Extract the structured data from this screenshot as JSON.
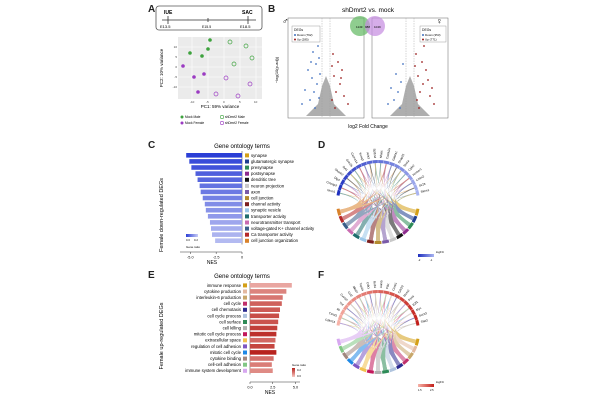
{
  "figure": {
    "panels": {
      "A": "A",
      "B": "B",
      "C": "C",
      "D": "D",
      "E": "E",
      "F": "F"
    },
    "timeline": {
      "iue": "IUE",
      "sac": "SAC",
      "e135": "E13.5",
      "e155": "E15.5",
      "e185": "E18.5"
    },
    "pca": {
      "xlabel": "PC1: 59% variance",
      "ylabel": "PC2: 10% variance",
      "xticks": [
        "-10",
        "-5",
        "0",
        "5",
        "10"
      ],
      "yticks": [
        "15",
        "10",
        "5",
        "0",
        "-5",
        "-10",
        "-15"
      ],
      "legend": [
        "Mock Male",
        "Mock Female",
        "shDmrt2 Male",
        "shDmrt2 Female"
      ]
    },
    "volcano": {
      "title": "shDmrt2 vs. mock",
      "ylabel": "−log(10(p-adj))",
      "xlabel": "log2 Fold Change",
      "male_symbol": "♂",
      "female_symbol": "♀",
      "legend_title": "DEGs",
      "male_down": "Down (792)",
      "male_up": "Up (285)",
      "female_down": "Down (353)",
      "female_up": "Up (771)",
      "venn_left": "1149",
      "venn_mid": "988",
      "venn_right": "1049"
    },
    "go_down": {
      "title": "Gene ontology terms",
      "side_label": "Female down-regulated DEGs",
      "xlabel": "NES",
      "xticks": [
        "-5.0",
        "-2.5",
        "0"
      ],
      "cbar_title": "Gene ratio",
      "cbar_ticks": [
        "0.0",
        "0.2"
      ]
    },
    "go_up": {
      "title": "Gene ontology terms",
      "side_label": "Female up-regulated DEGs",
      "xlabel": "NES",
      "xticks": [
        "0.0",
        "2.5",
        "5.0"
      ],
      "cbar_title": "Gene ratio",
      "cbar_ticks": [
        "0.2",
        "0.0"
      ]
    },
    "chord": {
      "logfc_label": "logFC",
      "down_ticks": [
        "-2",
        "-1"
      ],
      "up_ticks": [
        "1.5",
        "2.5"
      ],
      "down_genes": [
        "Nrxn1",
        "Cntnap2",
        "Dlg4",
        "Shank2",
        "Syt1",
        "Grin2b",
        "Cacna1a",
        "Kcnq3",
        "Ank3",
        "Sptbn4",
        "Nfasc",
        "Camk2a",
        "Gabra1",
        "Snap25",
        "Stx1a",
        "Cplx2",
        "Homer1",
        "Lrrtm2",
        "Sv2a",
        "Rims1"
      ],
      "up_genes": [
        "Cdkn1a",
        "Ccnd1",
        "Il6",
        "Tnf",
        "Cxcl10",
        "Ccl2",
        "Mki67",
        "Top2a",
        "Cdk1",
        "Bub1",
        "Aurkb",
        "Plk1",
        "Ccnb1",
        "Cdc20",
        "Mcm2",
        "Pcna",
        "E2f1",
        "Myc",
        "Socs3",
        "Stat3"
      ]
    }
  },
  "chart_data": [
    {
      "type": "bar",
      "title": "Gene ontology terms",
      "xlabel": "NES",
      "ylabel": "Female down-regulated DEGs",
      "xlim": [
        -6,
        0
      ],
      "categories": [
        "synapse",
        "glutamatergic synapse",
        "presynapse",
        "postsynapse",
        "dendritic tree",
        "neuron projection",
        "axon",
        "cell junction",
        "channel activity",
        "synaptic vesicle",
        "transporter activity",
        "neurotransmitter transport",
        "voltage-gated K+ channel activity",
        "Ca transporter activity",
        "cell junction organization"
      ],
      "values": [
        -5.4,
        -5.1,
        -4.9,
        -4.5,
        -4.3,
        -4.1,
        -4.0,
        -3.8,
        -3.6,
        -3.5,
        -3.3,
        -3.1,
        -3.0,
        -2.9,
        -2.6
      ],
      "gene_ratio": [
        0.22,
        0.2,
        0.19,
        0.17,
        0.16,
        0.14,
        0.13,
        0.12,
        0.1,
        0.09,
        0.08,
        0.06,
        0.05,
        0.04,
        0.03
      ],
      "category_colors": [
        "#d4a017",
        "#1f3e8f",
        "#2e8b57",
        "#8e2c8e",
        "#111111",
        "#c8c8c8",
        "#7a5aa8",
        "#b38b2e",
        "#7b1f1f",
        "#9bc7e8",
        "#1f6e6e",
        "#c96bb0",
        "#3a5f8a",
        "#b52a2a",
        "#d9822b"
      ]
    },
    {
      "type": "bar",
      "title": "Gene ontology terms",
      "xlabel": "NES",
      "ylabel": "Female up-regulated DEGs",
      "xlim": [
        0,
        5.5
      ],
      "categories": [
        "immune response",
        "cytokine production",
        "interleukin-6 production",
        "cell cycle",
        "cell chemotaxis",
        "cell cycle process",
        "cell surface",
        "cell killing",
        "mitotic cell cycle process",
        "extracellular space",
        "regulation of cell adhesion",
        "mitotic cell cycle",
        "cytokine binding",
        "cell-cell adhesion",
        "immune system development"
      ],
      "values": [
        4.6,
        4.0,
        3.6,
        3.5,
        3.3,
        3.2,
        3.1,
        3.0,
        2.9,
        2.8,
        2.7,
        2.9,
        2.6,
        2.4,
        2.5
      ],
      "gene_ratio": [
        0.05,
        0.1,
        0.12,
        0.15,
        0.16,
        0.18,
        0.17,
        0.2,
        0.22,
        0.14,
        0.19,
        0.24,
        0.13,
        0.11,
        0.09
      ],
      "category_colors": [
        "#d4a017",
        "#e3b9a0",
        "#c8a76a",
        "#c0306b",
        "#2b2b8f",
        "#b0c4de",
        "#2e8b57",
        "#b0b0b0",
        "#c2185b",
        "#f2c14e",
        "#7e57c2",
        "#1e88e5",
        "#a1887f",
        "#81c784",
        "#d7a8f0"
      ]
    }
  ]
}
